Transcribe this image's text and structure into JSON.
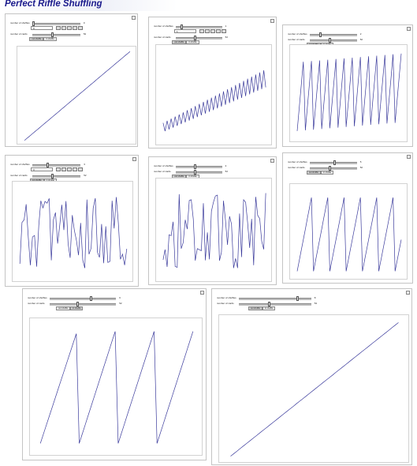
{
  "page_title": "Perfect Riffle Shuffling",
  "colors": {
    "title": "#1a1a8c",
    "line": "#3b3b9c",
    "panel_border": "#c4c4c4"
  },
  "labels": {
    "shuffles": "number of shuffles",
    "cards": "number of cards"
  },
  "tabs": {
    "out": "out shuffle",
    "in": "in shuffle"
  },
  "icons": [
    "panel-corner-button",
    "play-button",
    "step-back-button",
    "step-forward-button",
    "faster-button",
    "slower-button"
  ],
  "panels": [
    {
      "shuffles_value": "0",
      "cards_value": "52",
      "out_selected": true,
      "pattern": "identity",
      "shows_controls": true,
      "numbox_value": "0"
    },
    {
      "shuffles_value": "1",
      "cards_value": "52",
      "out_selected": true,
      "pattern": "two_teeth_26",
      "shows_controls": true,
      "numbox_value": "1"
    },
    {
      "shuffles_value": "2",
      "cards_value": "52",
      "out_selected": true,
      "pattern": "teeth_13",
      "shows_controls": false,
      "numbox_value": "2"
    },
    {
      "shuffles_value": "3",
      "cards_value": "52",
      "out_selected": true,
      "pattern": "chaotic",
      "shows_controls": true,
      "numbox_value": "3"
    },
    {
      "shuffles_value": "4",
      "cards_value": "52",
      "out_selected": true,
      "pattern": "chaotic",
      "shows_controls": false,
      "numbox_value": "4"
    },
    {
      "shuffles_value": "5",
      "cards_value": "52",
      "out_selected": true,
      "pattern": "teeth_7",
      "shows_controls": false,
      "numbox_value": ""
    },
    {
      "shuffles_value": "6",
      "cards_value": "52",
      "out_selected": false,
      "pattern": "teeth_4",
      "shows_controls": false,
      "numbox_value": ""
    },
    {
      "shuffles_value": "8",
      "cards_value": "52",
      "out_selected": true,
      "pattern": "identity",
      "shows_controls": false,
      "numbox_value": ""
    }
  ]
}
